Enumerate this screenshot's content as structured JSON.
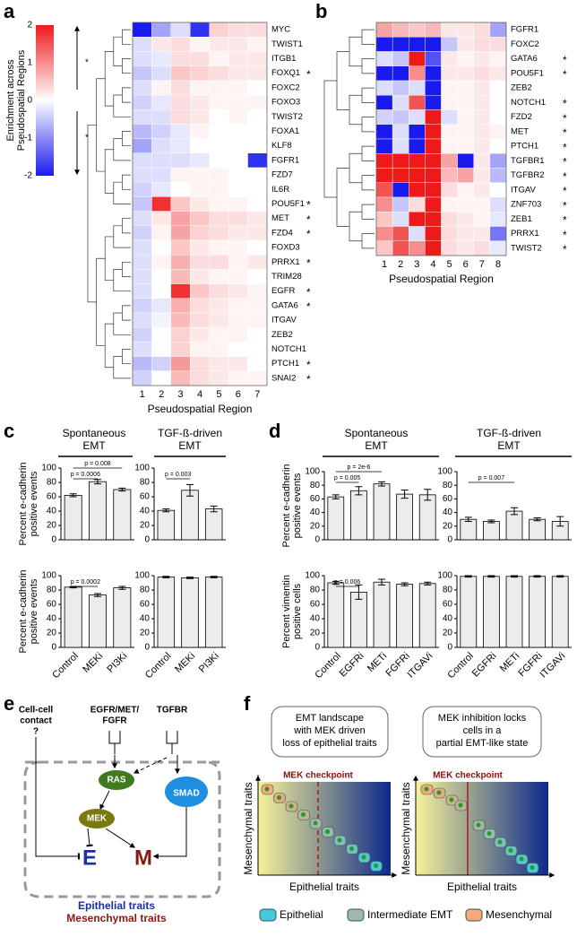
{
  "panel_labels": [
    "a",
    "b",
    "c",
    "d",
    "e",
    "f"
  ],
  "colorbar": {
    "title": [
      "Enrichment across",
      "Pseudospatial Regions"
    ],
    "lim": [
      -2,
      2
    ],
    "ticks": [
      2,
      1,
      0,
      -1,
      -2
    ],
    "colors": [
      "#1a1aee",
      "#ffffff",
      "#ee1a1a"
    ],
    "marks": [
      "*",
      "*"
    ]
  },
  "heatmaps": [
    {
      "rows": [
        "MYC",
        "TWIST1",
        "ITGB1",
        "FOXQ1",
        "FOXC2",
        "FOXO3",
        "TWIST2",
        "FOXA1",
        "KLF8",
        "FGFR1",
        "FZD7",
        "IL6R",
        "POU5F1",
        "MET",
        "FZD4",
        "FOXD3",
        "PRRX1",
        "TRIM28",
        "EGFR",
        "GATA6",
        "ITGAV",
        "ZEB2",
        "NOTCH1",
        "PTCH1",
        "SNAI2"
      ],
      "marks": [
        null,
        null,
        null,
        "*",
        null,
        null,
        null,
        null,
        null,
        null,
        null,
        null,
        "*",
        "*",
        "*",
        null,
        "*",
        null,
        "*",
        "*",
        null,
        null,
        null,
        "*",
        "*"
      ],
      "columns": [
        1,
        2,
        3,
        4,
        5,
        6,
        7
      ],
      "xlabel": "Pseudospatial Region",
      "values": [
        [
          -2,
          -0.8,
          -0.3,
          -1.8,
          0.4,
          0.3,
          0.3
        ],
        [
          -0.3,
          0.2,
          0.3,
          0.1,
          0.2,
          0.2,
          0.1
        ],
        [
          -0.3,
          -0.2,
          0.3,
          0.3,
          0.1,
          0.2,
          0.2
        ],
        [
          -0.5,
          -0.3,
          0.5,
          0.4,
          0.3,
          0.2,
          0.2
        ],
        [
          -0.3,
          0.1,
          0.3,
          0.1,
          0.1,
          0.1,
          0
        ],
        [
          -0.4,
          -0.2,
          0.3,
          0.2,
          0.1,
          0.1,
          0.1
        ],
        [
          -0.3,
          -0.3,
          0.3,
          0.2,
          0,
          0.1,
          0
        ],
        [
          -0.6,
          -0.4,
          -0.2,
          0.1,
          0,
          0,
          0
        ],
        [
          -0.8,
          -0.3,
          -0.2,
          0,
          0,
          0,
          0
        ],
        [
          -0.3,
          -0.3,
          -0.3,
          -0.2,
          0,
          0,
          -1.8
        ],
        [
          -0.3,
          -0.3,
          0.1,
          0.1,
          0.1,
          0,
          0
        ],
        [
          -0.4,
          -0.2,
          0,
          0.1,
          0.1,
          0,
          0
        ],
        [
          -0.5,
          1.8,
          0.5,
          0.2,
          0.1,
          0.1,
          0
        ],
        [
          -0.3,
          0.2,
          0.8,
          0.5,
          0.3,
          0.3,
          0.2
        ],
        [
          -0.4,
          0.1,
          0.8,
          0.4,
          0.3,
          0.2,
          0.2
        ],
        [
          -0.3,
          0,
          0.5,
          0.2,
          0.1,
          0.1,
          0
        ],
        [
          -0.3,
          0.1,
          0.7,
          0.3,
          0.3,
          0.1,
          0.2
        ],
        [
          -0.3,
          0,
          0.6,
          0.2,
          0.1,
          0.1,
          0
        ],
        [
          -0.3,
          0,
          1.8,
          0.5,
          0.3,
          0.2,
          0.1
        ],
        [
          -0.4,
          -0.2,
          0.7,
          0.3,
          0.2,
          0.1,
          0.1
        ],
        [
          -0.3,
          -0.1,
          0.6,
          0.3,
          0.2,
          0.1,
          0.1
        ],
        [
          -0.4,
          0,
          0.4,
          0.2,
          0.1,
          0.1,
          0
        ],
        [
          -0.3,
          0,
          0.4,
          0.1,
          0.1,
          0,
          0
        ],
        [
          -0.6,
          -0.4,
          0.9,
          0.3,
          0.2,
          0.2,
          0
        ],
        [
          -0.4,
          0,
          0.6,
          0.3,
          0.2,
          0.1,
          0.1
        ]
      ]
    },
    {
      "rows": [
        "FGFR1",
        "FOXC2",
        "GATA6",
        "POU5F1",
        "ZEB2",
        "NOTCH1",
        "FZD2",
        "MET",
        "PTCH1",
        "TGFBR1",
        "TGFBR2",
        "ITGAV",
        "ZNF703",
        "ZEB1",
        "PRRX1",
        "TWIST2"
      ],
      "marks": [
        null,
        null,
        "*",
        "*",
        null,
        "*",
        "*",
        "*",
        "*",
        "*",
        "*",
        "*",
        "*",
        "*",
        "*",
        "*"
      ],
      "columns": [
        1,
        2,
        3,
        4,
        5,
        6,
        7,
        8
      ],
      "xlabel": "Pseudospatial Region",
      "values": [
        [
          0.8,
          0.6,
          0.5,
          0.6,
          0.2,
          0.2,
          0.3,
          -0.8
        ],
        [
          -2,
          -2,
          -2,
          -2,
          -0.5,
          0.2,
          0.3,
          0.3
        ],
        [
          -0.3,
          -0.5,
          2,
          -1.5,
          0.2,
          0.1,
          0.2,
          0.1
        ],
        [
          -2,
          -2,
          1,
          -2,
          0.2,
          0.2,
          0.3,
          0.2
        ],
        [
          -0.3,
          -0.5,
          -0.3,
          -2,
          0.1,
          0.1,
          0.2,
          0
        ],
        [
          -2,
          -0.3,
          1.5,
          -2,
          0.1,
          0.1,
          0.2,
          0
        ],
        [
          -0.4,
          -0.5,
          -0.3,
          2,
          -0.3,
          0.1,
          0.2,
          0
        ],
        [
          -2,
          -0.3,
          -2,
          2,
          0.1,
          0.1,
          0.2,
          0.1
        ],
        [
          -2,
          -0.3,
          -2,
          2,
          0.1,
          0.1,
          0.2,
          0
        ],
        [
          2,
          2,
          2,
          2,
          0.8,
          -2,
          0.2,
          -0.8
        ],
        [
          2,
          2,
          2,
          2,
          0.6,
          0.8,
          0.2,
          -0.6
        ],
        [
          1.5,
          -2,
          2,
          2,
          0.3,
          0.1,
          0.2,
          0
        ],
        [
          1,
          -0.5,
          0.3,
          2,
          0.1,
          0.1,
          0.1,
          -0.3
        ],
        [
          0.5,
          -0.3,
          2,
          2,
          0.3,
          0.2,
          0.1,
          -0.2
        ],
        [
          1,
          1.5,
          -0.3,
          2,
          0.3,
          0.2,
          0.2,
          -1.2
        ],
        [
          0.5,
          1.5,
          1,
          2,
          0.3,
          0.2,
          0.3,
          -0.2
        ]
      ]
    }
  ],
  "group_titles": [
    [
      "Spontaneous",
      "EMT"
    ],
    [
      "TGF-ß-driven",
      "EMT"
    ],
    [
      "Spontaneous",
      "EMT"
    ],
    [
      "TGF-ß-driven",
      "EMT"
    ]
  ],
  "bar_color": "#ececec",
  "bar_charts": [
    {
      "ylabel": [
        "Percent e-cadherin",
        "positive events"
      ],
      "categories": null,
      "values": [
        62,
        81,
        70
      ],
      "errors": [
        2,
        3,
        2
      ],
      "ylim": [
        0,
        100
      ],
      "yticks": [
        0,
        20,
        40,
        60,
        80,
        100
      ],
      "annotations": [
        {
          "pair": [
            0,
            1
          ],
          "label": "p = 0.0006"
        },
        {
          "pair": [
            0,
            2
          ],
          "label": "p = 0.008"
        }
      ]
    },
    {
      "categories": null,
      "values": [
        41,
        69,
        43
      ],
      "errors": [
        2,
        8,
        4
      ],
      "ylim": [
        0,
        100
      ],
      "yticks": [
        0,
        20,
        40,
        60,
        80,
        100
      ],
      "annotations": [
        {
          "pair": [
            0,
            1
          ],
          "label": "p = 0.003"
        }
      ]
    },
    {
      "ylabel": [
        "Percent e-cadherin",
        "positive events"
      ],
      "categories": [
        "Control",
        "MEKi",
        "PI3Ki"
      ],
      "values": [
        84,
        73,
        83
      ],
      "errors": [
        1,
        2,
        2
      ],
      "ylim": [
        0,
        100
      ],
      "yticks": [
        0,
        20,
        40,
        60,
        80,
        100
      ],
      "annotations": [
        {
          "pair": [
            0,
            1
          ],
          "label": "p = 0.0002"
        }
      ]
    },
    {
      "categories": [
        "Control",
        "MEKi",
        "PI3Ki"
      ],
      "values": [
        98,
        97,
        98
      ],
      "errors": [
        1,
        1,
        1
      ],
      "ylim": [
        0,
        100
      ],
      "yticks": [
        0,
        20,
        40,
        60,
        80,
        100
      ],
      "annotations": []
    },
    {
      "ylabel": [
        "Percent e-cadherin",
        "positive events"
      ],
      "categories": null,
      "values": [
        63,
        72,
        82,
        67,
        66
      ],
      "errors": [
        3,
        6,
        3,
        6,
        8
      ],
      "ylim": [
        0,
        100
      ],
      "yticks": [
        0,
        20,
        40,
        60,
        80,
        100
      ],
      "annotations": [
        {
          "pair": [
            0,
            1
          ],
          "label": "p = 0.005"
        },
        {
          "pair": [
            0,
            2
          ],
          "label": "p = 2e-6"
        }
      ]
    },
    {
      "categories": null,
      "values": [
        30,
        27,
        42,
        30,
        27
      ],
      "errors": [
        3,
        2,
        5,
        2,
        7
      ],
      "ylim": [
        0,
        100
      ],
      "yticks": [
        0,
        20,
        40,
        60,
        80,
        100
      ],
      "annotations": [
        {
          "pair": [
            0,
            2
          ],
          "label": "p = 0.007"
        }
      ]
    },
    {
      "ylabel": [
        "Percent vimentin",
        "positive cells"
      ],
      "categories": [
        "Control",
        "EGFRi",
        "METi",
        "FGFRi",
        "ITGAVi"
      ],
      "values": [
        90,
        77,
        91,
        88,
        89
      ],
      "errors": [
        2,
        10,
        4,
        2,
        2
      ],
      "ylim": [
        0,
        100
      ],
      "yticks": [
        0,
        20,
        40,
        60,
        80,
        100
      ],
      "annotations": [
        {
          "pair": [
            0,
            1
          ],
          "label": "p = 0.006"
        }
      ]
    },
    {
      "categories": [
        "Control",
        "EGFRi",
        "METi",
        "FGFRi",
        "ITGAVi"
      ],
      "values": [
        99,
        99,
        99,
        99,
        99
      ],
      "errors": [
        1,
        1,
        1,
        1,
        1
      ],
      "ylim": [
        0,
        100
      ],
      "yticks": [
        0,
        20,
        40,
        60,
        80,
        100
      ],
      "annotations": []
    }
  ],
  "pathway": {
    "inputs": [
      [
        "Cell-cell",
        "contact",
        "?"
      ],
      [
        "EGFR/MET/",
        "FGFR"
      ],
      [
        "TGFBR"
      ]
    ],
    "nodes": [
      "RAS",
      "SMAD",
      "MEK"
    ],
    "outputs": [
      "E",
      "M"
    ],
    "legend": [
      "Epithelial traits",
      "Mesenchymal traits"
    ]
  },
  "landscape": {
    "captions": [
      [
        "EMT landscape",
        "with MEK driven",
        "loss of epithelial traits"
      ],
      [
        "MEK inhibition locks",
        "cells in a",
        "partial EMT-like state"
      ]
    ],
    "checkpoint": "MEK checkpoint",
    "ylabel": "Mesenchymal traits",
    "xlabel": "Epithelial traits",
    "legend": [
      "Epithelial",
      "Intermediate EMT",
      "Mesenchymal"
    ]
  }
}
